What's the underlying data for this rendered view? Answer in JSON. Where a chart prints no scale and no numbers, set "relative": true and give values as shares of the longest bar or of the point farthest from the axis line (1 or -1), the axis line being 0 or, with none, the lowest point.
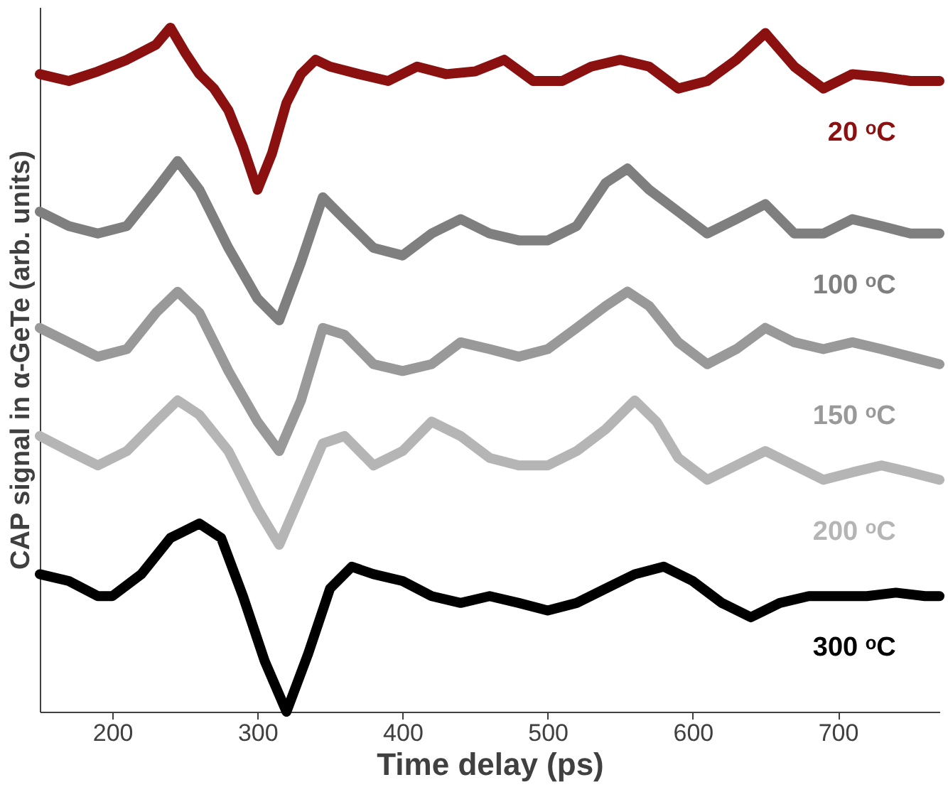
{
  "chart_data": {
    "type": "line",
    "relative": true,
    "xlabel": "Time delay (ps)",
    "ylabel": "CAP signal in α-GeTe (arb. units)",
    "xlim": [
      150,
      770
    ],
    "xticks": [
      200,
      300,
      400,
      500,
      600,
      700
    ],
    "tick_labels": "x",
    "grid": false,
    "legend": false,
    "line_style": "solid",
    "series": [
      {
        "name": "20 ᵒC",
        "color": "#8b1111",
        "x": [
          150,
          170,
          190,
          210,
          230,
          240,
          250,
          260,
          270,
          280,
          290,
          300,
          310,
          320,
          330,
          340,
          350,
          370,
          390,
          410,
          430,
          450,
          470,
          490,
          510,
          530,
          550,
          570,
          590,
          610,
          630,
          650,
          670,
          690,
          710,
          730,
          750,
          770
        ],
        "values": [
          0.932,
          0.922,
          0.936,
          0.953,
          0.975,
          1,
          0.964,
          0.932,
          0.911,
          0.879,
          0.826,
          0.763,
          0.816,
          0.89,
          0.932,
          0.953,
          0.943,
          0.932,
          0.922,
          0.943,
          0.932,
          0.936,
          0.953,
          0.922,
          0.922,
          0.943,
          0.953,
          0.943,
          0.911,
          0.922,
          0.953,
          0.992,
          0.943,
          0.911,
          0.932,
          0.928,
          0.922,
          0.922
        ]
      },
      {
        "name": "100 ᵒC",
        "color": "#7f7f7f",
        "x": [
          150,
          170,
          190,
          210,
          230,
          245,
          260,
          280,
          300,
          315,
          330,
          345,
          360,
          380,
          400,
          420,
          440,
          460,
          480,
          500,
          520,
          540,
          555,
          570,
          590,
          610,
          630,
          650,
          670,
          690,
          710,
          730,
          750,
          770
        ],
        "values": [
          0.731,
          0.71,
          0.699,
          0.71,
          0.763,
          0.805,
          0.763,
          0.678,
          0.604,
          0.572,
          0.657,
          0.752,
          0.72,
          0.678,
          0.667,
          0.699,
          0.72,
          0.699,
          0.689,
          0.689,
          0.71,
          0.773,
          0.794,
          0.763,
          0.731,
          0.699,
          0.72,
          0.742,
          0.699,
          0.699,
          0.72,
          0.71,
          0.699,
          0.699
        ]
      },
      {
        "name": "150 ᵒC",
        "color": "#999999",
        "x": [
          150,
          170,
          190,
          210,
          230,
          245,
          260,
          280,
          300,
          315,
          330,
          345,
          360,
          380,
          400,
          420,
          440,
          460,
          480,
          500,
          520,
          540,
          555,
          570,
          590,
          610,
          630,
          650,
          670,
          690,
          710,
          730,
          750,
          770
        ],
        "values": [
          0.561,
          0.54,
          0.519,
          0.53,
          0.583,
          0.614,
          0.583,
          0.498,
          0.424,
          0.381,
          0.455,
          0.561,
          0.551,
          0.508,
          0.498,
          0.508,
          0.54,
          0.53,
          0.519,
          0.53,
          0.561,
          0.593,
          0.614,
          0.593,
          0.54,
          0.508,
          0.53,
          0.561,
          0.54,
          0.53,
          0.54,
          0.53,
          0.519,
          0.508
        ]
      },
      {
        "name": "200 ᵒC",
        "color": "#b5b5b5",
        "x": [
          150,
          170,
          190,
          210,
          230,
          245,
          260,
          280,
          300,
          315,
          330,
          345,
          360,
          380,
          400,
          420,
          440,
          460,
          480,
          500,
          520,
          540,
          560,
          575,
          590,
          610,
          630,
          650,
          670,
          690,
          710,
          730,
          750,
          770
        ],
        "values": [
          0.403,
          0.381,
          0.36,
          0.381,
          0.424,
          0.455,
          0.434,
          0.381,
          0.297,
          0.244,
          0.318,
          0.392,
          0.403,
          0.36,
          0.381,
          0.424,
          0.403,
          0.371,
          0.36,
          0.36,
          0.381,
          0.413,
          0.455,
          0.424,
          0.371,
          0.339,
          0.36,
          0.381,
          0.36,
          0.339,
          0.35,
          0.36,
          0.35,
          0.339
        ]
      },
      {
        "name": "300 ᵒC",
        "color": "#000000",
        "x": [
          150,
          170,
          190,
          200,
          220,
          240,
          260,
          275,
          290,
          305,
          320,
          335,
          350,
          365,
          380,
          400,
          420,
          440,
          460,
          480,
          500,
          520,
          540,
          560,
          580,
          600,
          620,
          640,
          660,
          680,
          700,
          720,
          740,
          760,
          770
        ],
        "values": [
          0.201,
          0.191,
          0.169,
          0.169,
          0.201,
          0.254,
          0.275,
          0.254,
          0.169,
          0.074,
          0,
          0.085,
          0.18,
          0.212,
          0.201,
          0.191,
          0.169,
          0.159,
          0.169,
          0.159,
          0.148,
          0.159,
          0.18,
          0.201,
          0.212,
          0.191,
          0.159,
          0.138,
          0.159,
          0.169,
          0.169,
          0.169,
          0.174,
          0.169,
          0.169
        ]
      }
    ]
  }
}
